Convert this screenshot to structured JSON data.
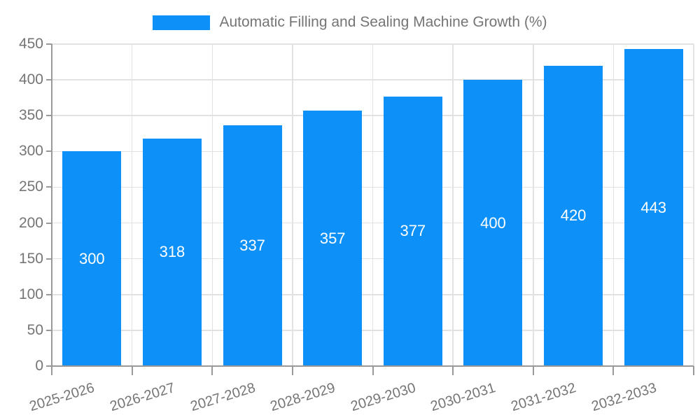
{
  "chart_data": {
    "type": "bar",
    "title": "",
    "legend": "Automatic Filling and Sealing Machine Growth (%)",
    "legend_position": "top-center",
    "categories": [
      "2025-2026",
      "2026-2027",
      "2027-2028",
      "2028-2029",
      "2029-2030",
      "2030-2031",
      "2031-2032",
      "2032-2033"
    ],
    "values": [
      300,
      318,
      337,
      357,
      377,
      400,
      420,
      443
    ],
    "value_labels": [
      "300",
      "318",
      "337",
      "357",
      "377",
      "400",
      "420",
      "443"
    ],
    "xlabel": "",
    "ylabel": "",
    "ylim": [
      0,
      450
    ],
    "yticks": [
      0,
      50,
      100,
      150,
      200,
      250,
      300,
      350,
      400,
      450
    ],
    "grid": "on",
    "colors": {
      "bar": "#0d90f8",
      "grid": "#e2e2e2",
      "axis": "#999999",
      "text": "#757575",
      "value_text": "#ffffff"
    }
  }
}
